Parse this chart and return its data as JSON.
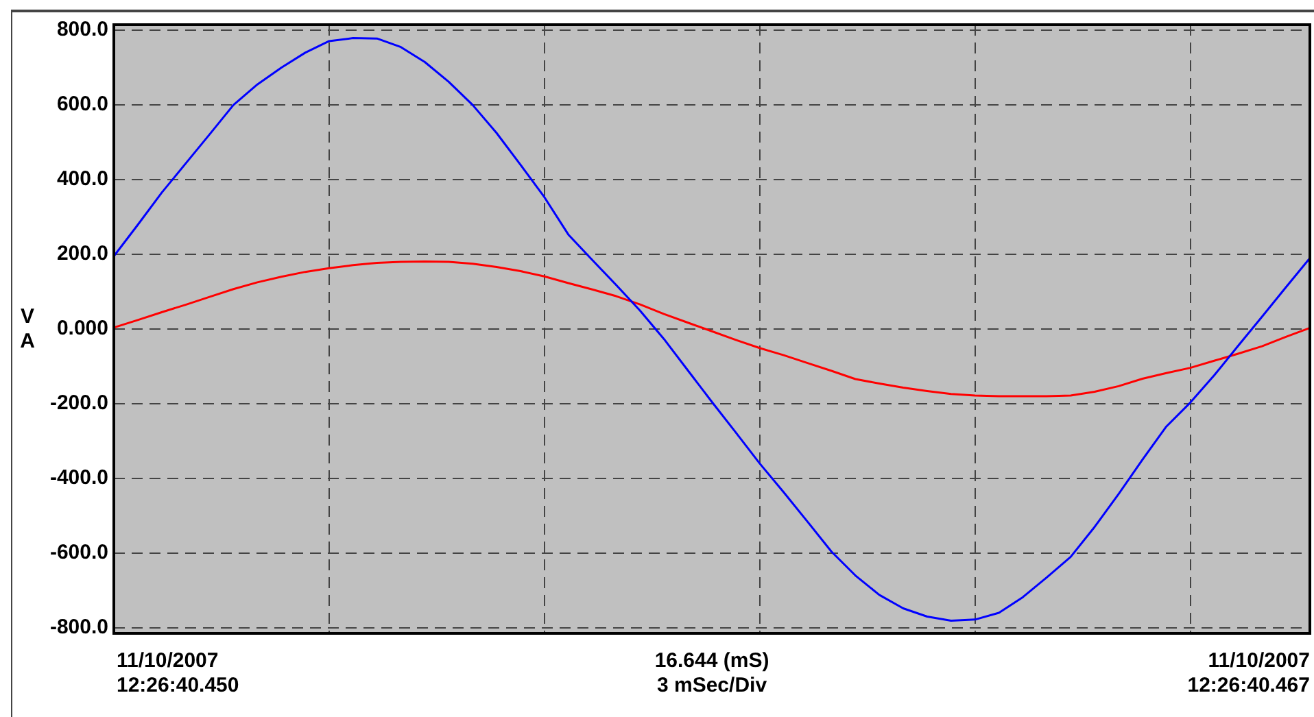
{
  "chart_data": {
    "type": "line",
    "ylabel": "V\nA",
    "annotations": [
      "11/10/2007\n12:26:40.450",
      "16.644 (mS)\n3 mSec/Div",
      "11/10/2007\n12:26:40.467"
    ],
    "categories": [
      null,
      null,
      null,
      null,
      null,
      null,
      null,
      null,
      null,
      null,
      null,
      null,
      null,
      null,
      null,
      null,
      null,
      null,
      null,
      null,
      null,
      null,
      null,
      null,
      null,
      null,
      null,
      null,
      null,
      null,
      null,
      null,
      null,
      null,
      null,
      null,
      null,
      null,
      null,
      null,
      null,
      null,
      null,
      null,
      null,
      null,
      null,
      null,
      null,
      null,
      null
    ],
    "ylim": [
      -815,
      815
    ],
    "yticks": [
      {
        "value": -800,
        "label": "-800.0"
      },
      {
        "value": -600,
        "label": "-600.0"
      },
      {
        "value": -400,
        "label": "-400.0"
      },
      {
        "value": -200,
        "label": "-200.0"
      },
      {
        "value": 0,
        "label": "0.000"
      },
      {
        "value": 200,
        "label": "200.0"
      },
      {
        "value": 400,
        "label": "400.0"
      },
      {
        "value": 600,
        "label": "600.0"
      },
      {
        "value": 800,
        "label": "800.0"
      }
    ],
    "tick_labels": "y",
    "grid": true,
    "marker": "none",
    "line_style": "solid",
    "series": [
      {
        "color": "#0000ff",
        "values": [
          195,
          279,
          365,
          443,
          521,
          600,
          655,
          700,
          740,
          771,
          779,
          778,
          755,
          715,
          662,
          600,
          525,
          440,
          353,
          253,
          185,
          118,
          49,
          -27,
          -111,
          -195,
          -277,
          -360,
          -437,
          -516,
          -596,
          -660,
          -712,
          -748,
          -770,
          -781,
          -778,
          -760,
          -718,
          -665,
          -610,
          -530,
          -442,
          -350,
          -261,
          -197,
          -124,
          -45,
          33,
          112,
          190
        ]
      },
      {
        "color": "#ff0000",
        "values": [
          4,
          24,
          45,
          65,
          86,
          107,
          125,
          140,
          153,
          163,
          171,
          177,
          180,
          181,
          180,
          175,
          166,
          155,
          141,
          123,
          106,
          88,
          66,
          40,
          17,
          -6,
          -29,
          -51,
          -70,
          -91,
          -112,
          -134,
          -146,
          -157,
          -166,
          -174,
          -178,
          -180,
          -180,
          -180,
          -178,
          -168,
          -153,
          -133,
          -118,
          -104,
          -85,
          -66,
          -46,
          -21,
          3
        ]
      }
    ]
  }
}
